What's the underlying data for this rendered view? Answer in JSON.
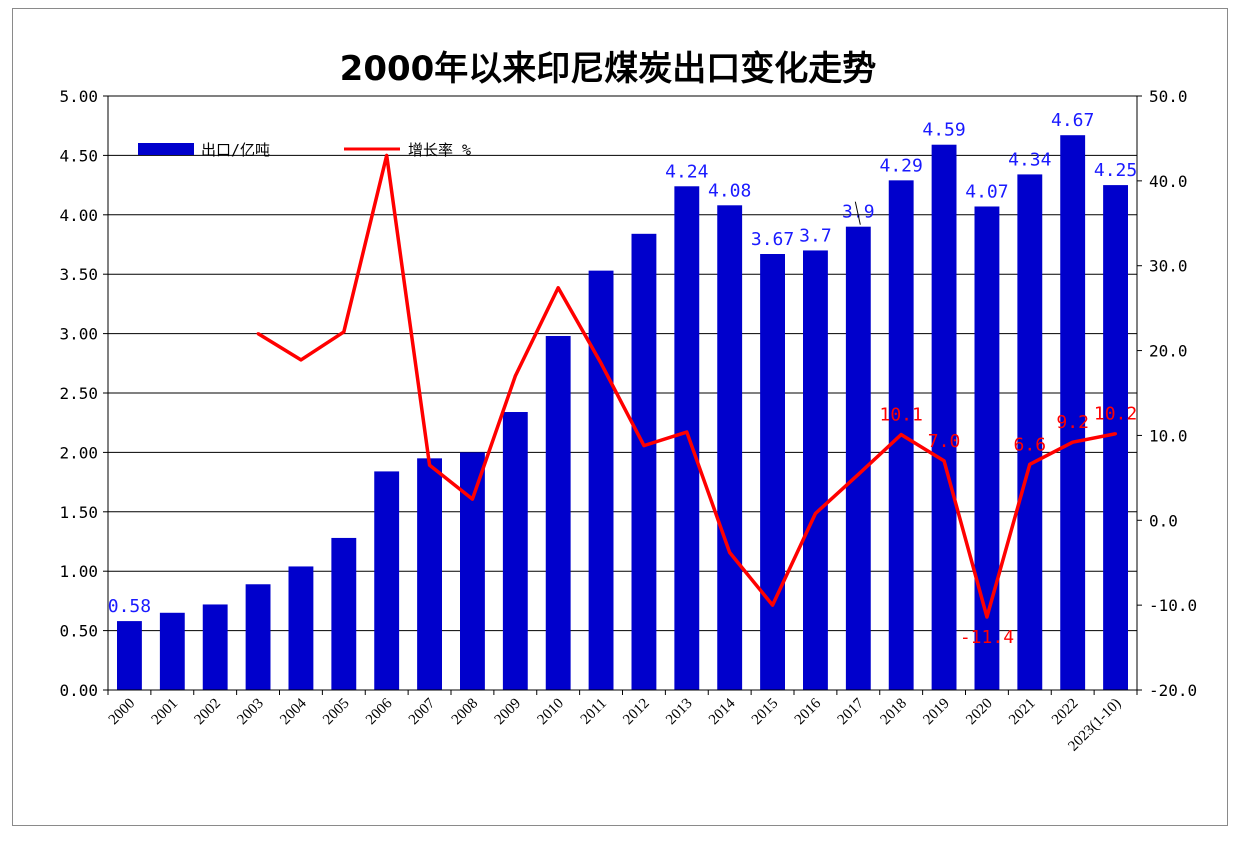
{
  "chart_data": {
    "type": "bar",
    "title": "2000年以来印尼煤炭出口变化走势",
    "categories": [
      "2000",
      "2001",
      "2002",
      "2003",
      "2004",
      "2005",
      "2006",
      "2007",
      "2008",
      "2009",
      "2010",
      "2011",
      "2012",
      "2013",
      "2014",
      "2015",
      "2016",
      "2017",
      "2018",
      "2019",
      "2020",
      "2021",
      "2022",
      "2023(1-10)"
    ],
    "series": [
      {
        "name": "出口/亿吨",
        "type": "bar",
        "axis": "left",
        "color": "#0000cc",
        "values": [
          0.58,
          0.65,
          0.72,
          0.89,
          1.04,
          1.28,
          1.84,
          1.95,
          2.0,
          2.34,
          2.98,
          3.53,
          3.84,
          4.24,
          4.08,
          3.67,
          3.7,
          3.9,
          4.29,
          4.59,
          4.07,
          4.34,
          4.67,
          4.25
        ],
        "data_labels": {
          "0": "0.58",
          "13": "4.24",
          "14": "4.08",
          "15": "3.67",
          "16": "3.7",
          "17": "3.9",
          "18": "4.29",
          "19": "4.59",
          "20": "4.07",
          "21": "4.34",
          "22": "4.67",
          "23": "4.25"
        }
      },
      {
        "name": "增长率 %",
        "type": "line",
        "axis": "right",
        "color": "#ff0000",
        "values": [
          null,
          null,
          null,
          22.0,
          18.9,
          22.2,
          43.0,
          6.5,
          2.5,
          17.0,
          27.4,
          18.5,
          8.8,
          10.4,
          -3.8,
          -10.0,
          0.8,
          5.4,
          10.1,
          7.0,
          -11.4,
          6.6,
          9.2,
          10.2
        ],
        "data_labels": {
          "18": "10.1",
          "19": "7.0",
          "20": "-11.4",
          "21": "6.6",
          "22": "9.2",
          "23": "10.2"
        }
      }
    ],
    "y_left": {
      "min": 0,
      "max": 5,
      "step": 0.5,
      "ticks": [
        "0.00",
        "0.50",
        "1.00",
        "1.50",
        "2.00",
        "2.50",
        "3.00",
        "3.50",
        "4.00",
        "4.50",
        "5.00"
      ]
    },
    "y_right": {
      "min": -20,
      "max": 50,
      "step": 10,
      "ticks": [
        "-20.0",
        "-10.0",
        "0.0",
        "10.0",
        "20.0",
        "30.0",
        "40.0",
        "50.0"
      ]
    },
    "grid": true,
    "legend": "top-left"
  }
}
